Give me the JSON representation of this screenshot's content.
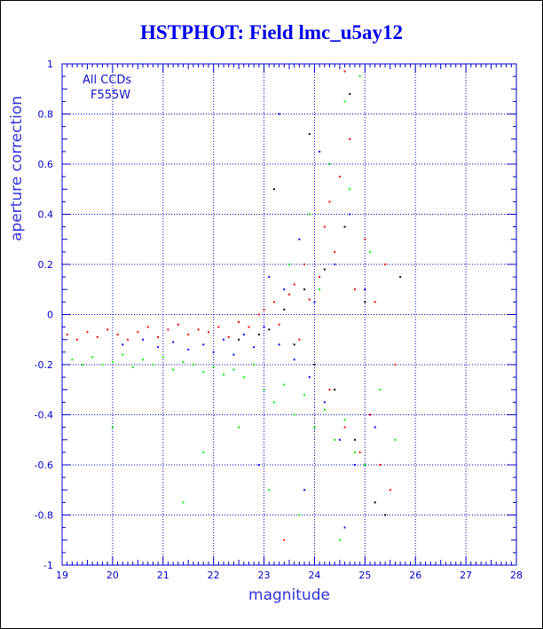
{
  "chart_data": {
    "type": "scatter",
    "title": "HSTPHOT: Field lmc_u5ay12",
    "xlabel": "magnitude",
    "ylabel": "aperture correction",
    "xlim": [
      19,
      28
    ],
    "ylim": [
      -1,
      1
    ],
    "x_ticks": [
      "19",
      "20",
      "21",
      "22",
      "23",
      "24",
      "25",
      "26",
      "27",
      "28"
    ],
    "y_ticks": [
      "-1",
      "-0.8",
      "-0.6",
      "-0.4",
      "-0.2",
      "0",
      "0.2",
      "0.4",
      "0.6",
      "0.8",
      "1"
    ],
    "grid": "dotted",
    "annotation": [
      "All CCDs",
      "F555W"
    ],
    "colors": {
      "axis": "#0000cc",
      "title": "#0000ee",
      "grid": "#0000cc"
    },
    "series": [
      {
        "color": "#ff0000",
        "points": [
          [
            19.1,
            -0.08
          ],
          [
            19.3,
            -0.1
          ],
          [
            19.5,
            -0.07
          ],
          [
            19.7,
            -0.09
          ],
          [
            19.9,
            -0.06
          ],
          [
            20.1,
            -0.08
          ],
          [
            20.3,
            -0.1
          ],
          [
            20.5,
            -0.07
          ],
          [
            20.7,
            -0.05
          ],
          [
            20.9,
            -0.09
          ],
          [
            21.1,
            -0.06
          ],
          [
            21.3,
            -0.04
          ],
          [
            21.5,
            -0.08
          ],
          [
            21.7,
            -0.06
          ],
          [
            21.9,
            -0.07
          ],
          [
            22.1,
            -0.05
          ],
          [
            22.3,
            -0.09
          ],
          [
            22.5,
            -0.03
          ],
          [
            22.7,
            -0.05
          ],
          [
            22.9,
            0.0
          ],
          [
            23.0,
            0.02
          ],
          [
            23.2,
            0.05
          ],
          [
            23.3,
            -0.04
          ],
          [
            23.5,
            0.08
          ],
          [
            23.6,
            0.12
          ],
          [
            23.7,
            -0.1
          ],
          [
            23.8,
            0.2
          ],
          [
            23.9,
            0.06
          ],
          [
            24.0,
            -0.2
          ],
          [
            24.1,
            0.15
          ],
          [
            24.2,
            0.35
          ],
          [
            24.3,
            -0.3
          ],
          [
            24.4,
            0.25
          ],
          [
            24.5,
            0.55
          ],
          [
            24.6,
            -0.45
          ],
          [
            24.7,
            0.7
          ],
          [
            24.8,
            0.1
          ],
          [
            24.9,
            -0.55
          ],
          [
            25.0,
            0.3
          ],
          [
            25.1,
            -0.4
          ],
          [
            25.2,
            0.05
          ],
          [
            25.3,
            -0.6
          ],
          [
            25.4,
            0.2
          ],
          [
            25.5,
            -0.7
          ],
          [
            24.6,
            0.97
          ],
          [
            23.4,
            -0.9
          ],
          [
            24.3,
            0.45
          ],
          [
            25.6,
            -0.2
          ]
        ]
      },
      {
        "color": "#0000ff",
        "points": [
          [
            20.2,
            -0.12
          ],
          [
            20.6,
            -0.1
          ],
          [
            20.9,
            -0.13
          ],
          [
            21.2,
            -0.11
          ],
          [
            21.5,
            -0.14
          ],
          [
            21.8,
            -0.12
          ],
          [
            22.0,
            -0.15
          ],
          [
            22.2,
            -0.1
          ],
          [
            22.4,
            -0.16
          ],
          [
            22.6,
            -0.08
          ],
          [
            22.8,
            -0.13
          ],
          [
            23.0,
            -0.05
          ],
          [
            23.1,
            0.15
          ],
          [
            23.3,
            -0.12
          ],
          [
            23.4,
            0.1
          ],
          [
            23.6,
            -0.18
          ],
          [
            23.7,
            0.3
          ],
          [
            23.9,
            -0.25
          ],
          [
            24.0,
            0.05
          ],
          [
            24.2,
            -0.35
          ],
          [
            24.4,
            0.2
          ],
          [
            24.5,
            -0.5
          ],
          [
            24.7,
            0.4
          ],
          [
            24.8,
            -0.6
          ],
          [
            25.0,
            0.1
          ],
          [
            25.2,
            -0.45
          ],
          [
            23.3,
            0.8
          ],
          [
            22.9,
            -0.6
          ],
          [
            24.1,
            0.65
          ],
          [
            23.8,
            -0.7
          ],
          [
            24.6,
            -0.85
          ]
        ]
      },
      {
        "color": "#00ee00",
        "points": [
          [
            19.2,
            -0.18
          ],
          [
            19.4,
            -0.2
          ],
          [
            19.6,
            -0.17
          ],
          [
            19.8,
            -0.2
          ],
          [
            20.0,
            -0.19
          ],
          [
            20.2,
            -0.16
          ],
          [
            20.4,
            -0.21
          ],
          [
            20.6,
            -0.18
          ],
          [
            20.8,
            -0.2
          ],
          [
            21.0,
            -0.17
          ],
          [
            21.2,
            -0.22
          ],
          [
            21.4,
            -0.19
          ],
          [
            21.6,
            -0.2
          ],
          [
            21.8,
            -0.23
          ],
          [
            22.0,
            -0.21
          ],
          [
            22.2,
            -0.24
          ],
          [
            22.4,
            -0.22
          ],
          [
            22.6,
            -0.25
          ],
          [
            22.8,
            -0.2
          ],
          [
            23.0,
            -0.3
          ],
          [
            23.2,
            -0.35
          ],
          [
            23.4,
            -0.28
          ],
          [
            23.6,
            -0.4
          ],
          [
            23.8,
            -0.32
          ],
          [
            24.0,
            -0.45
          ],
          [
            24.2,
            -0.38
          ],
          [
            24.4,
            -0.5
          ],
          [
            24.6,
            -0.42
          ],
          [
            24.8,
            -0.55
          ],
          [
            25.0,
            -0.6
          ],
          [
            23.5,
            0.2
          ],
          [
            23.9,
            0.4
          ],
          [
            24.3,
            0.6
          ],
          [
            24.6,
            0.85
          ],
          [
            24.9,
            0.95
          ],
          [
            24.1,
            0.1
          ],
          [
            25.3,
            -0.3
          ],
          [
            25.6,
            -0.5
          ],
          [
            23.1,
            -0.7
          ],
          [
            23.7,
            -0.8
          ],
          [
            24.5,
            -0.9
          ],
          [
            21.4,
            -0.75
          ],
          [
            21.8,
            -0.55
          ],
          [
            20.0,
            -0.45
          ],
          [
            22.5,
            -0.45
          ],
          [
            25.1,
            0.25
          ],
          [
            24.7,
            0.5
          ]
        ]
      },
      {
        "color": "#000000",
        "points": [
          [
            22.5,
            -0.1
          ],
          [
            22.9,
            -0.08
          ],
          [
            23.1,
            -0.06
          ],
          [
            23.4,
            0.02
          ],
          [
            23.6,
            -0.12
          ],
          [
            23.8,
            0.1
          ],
          [
            24.0,
            -0.2
          ],
          [
            24.2,
            0.18
          ],
          [
            24.4,
            -0.3
          ],
          [
            24.6,
            0.35
          ],
          [
            24.8,
            -0.5
          ],
          [
            25.0,
            0.05
          ],
          [
            25.2,
            -0.75
          ],
          [
            25.4,
            -0.8
          ],
          [
            23.9,
            0.72
          ],
          [
            24.7,
            0.88
          ],
          [
            23.2,
            0.5
          ],
          [
            25.7,
            0.15
          ]
        ]
      }
    ]
  }
}
